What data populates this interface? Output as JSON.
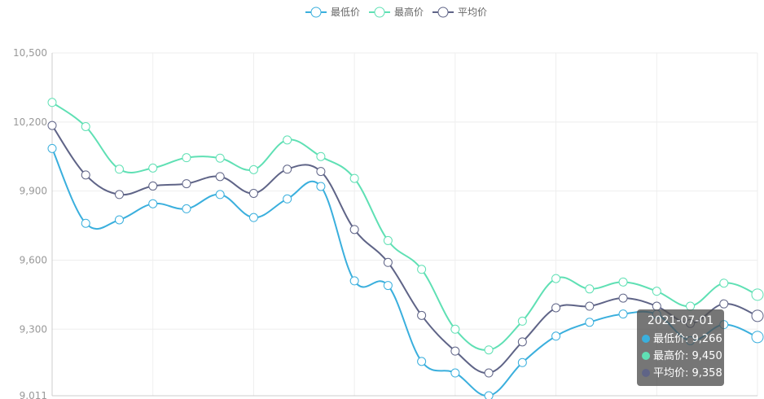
{
  "chart_data": {
    "type": "line",
    "title": "",
    "xlabel": "",
    "ylabel": "",
    "ylim": [
      9011,
      10500
    ],
    "y_ticks": [
      9011,
      9300,
      9600,
      9900,
      10200,
      10500
    ],
    "y_tick_labels": [
      "9,011",
      "9,300",
      "9,600",
      "9,900",
      "10,200",
      "10,500"
    ],
    "grid": true,
    "legend_position": "top-center",
    "x_count": 22,
    "series": [
      {
        "name": "最低价",
        "color": "#3aafdd",
        "values": [
          10085,
          9760,
          9775,
          9845,
          9823,
          9885,
          9785,
          9866,
          9920,
          9510,
          9490,
          9160,
          9110,
          9011,
          9155,
          9270,
          9330,
          9366,
          9365,
          9250,
          9320,
          9266
        ]
      },
      {
        "name": "最高价",
        "color": "#5fe0b4",
        "values": [
          10285,
          10180,
          9995,
          10000,
          10045,
          10043,
          9993,
          10122,
          10050,
          9955,
          9685,
          9560,
          9300,
          9210,
          9335,
          9520,
          9475,
          9505,
          9465,
          9400,
          9500,
          9450
        ]
      },
      {
        "name": "平均价",
        "color": "#5f6487",
        "values": [
          10185,
          9970,
          9885,
          9922,
          9932,
          9963,
          9890,
          9995,
          9985,
          9733,
          9590,
          9360,
          9205,
          9110,
          9245,
          9393,
          9400,
          9435,
          9400,
          9325,
          9410,
          9358
        ]
      }
    ],
    "hovered_index": 21
  },
  "tooltip": {
    "date": "2021-07-01",
    "rows": [
      {
        "label": "最低价: 9,266",
        "color": "#3aafdd"
      },
      {
        "label": "最高价: 9,450",
        "color": "#5fe0b4"
      },
      {
        "label": "平均价: 9,358",
        "color": "#5f6487"
      }
    ]
  }
}
